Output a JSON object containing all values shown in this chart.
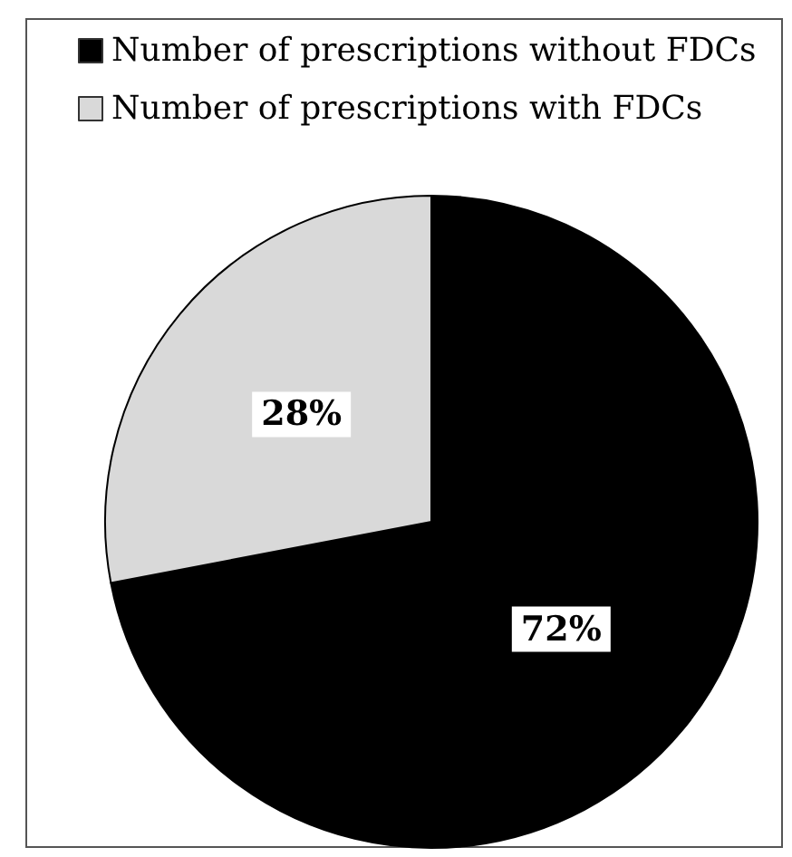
{
  "chart_data": {
    "type": "pie",
    "categories": [
      "Number of prescriptions without FDCs",
      "Number of prescriptions with FDCs"
    ],
    "values": [
      72,
      28
    ],
    "colors": [
      "#000000",
      "#d9d9d9"
    ],
    "value_labels": [
      "72%",
      "28%"
    ],
    "legend": "top left"
  }
}
